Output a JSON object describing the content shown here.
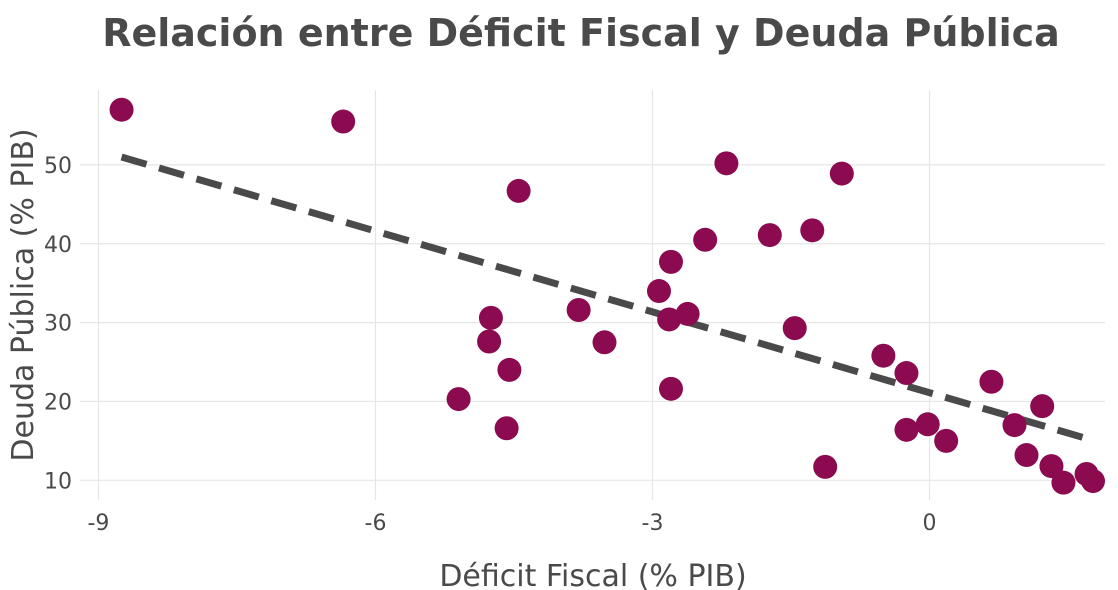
{
  "chart_data": {
    "type": "scatter",
    "title": "Relación entre Déficit Fiscal y Deuda Pública",
    "xlabel": "Déficit Fiscal (% PIB)",
    "ylabel": "Deuda Pública (% PIB)",
    "xlim": [
      -9.2,
      1.9
    ],
    "ylim": [
      7.5,
      59.5
    ],
    "x_ticks": [
      -9,
      -6,
      -3,
      0
    ],
    "y_ticks": [
      10,
      20,
      30,
      40,
      50
    ],
    "grid": true,
    "point_color": "#8b0a50",
    "trend_color": "#4a4a4a",
    "points": [
      {
        "x": -8.75,
        "y": 57.0
      },
      {
        "x": -6.35,
        "y": 55.5
      },
      {
        "x": -5.1,
        "y": 20.3
      },
      {
        "x": -4.75,
        "y": 30.6
      },
      {
        "x": -4.77,
        "y": 27.6
      },
      {
        "x": -4.55,
        "y": 24.0
      },
      {
        "x": -4.58,
        "y": 16.6
      },
      {
        "x": -4.45,
        "y": 46.7
      },
      {
        "x": -3.8,
        "y": 31.6
      },
      {
        "x": -3.52,
        "y": 27.5
      },
      {
        "x": -2.93,
        "y": 34.0
      },
      {
        "x": -2.8,
        "y": 37.7
      },
      {
        "x": -2.82,
        "y": 30.4
      },
      {
        "x": -2.62,
        "y": 31.1
      },
      {
        "x": -2.8,
        "y": 21.6
      },
      {
        "x": -2.43,
        "y": 40.5
      },
      {
        "x": -2.2,
        "y": 50.2
      },
      {
        "x": -1.73,
        "y": 41.1
      },
      {
        "x": -1.27,
        "y": 41.7
      },
      {
        "x": -1.46,
        "y": 29.3
      },
      {
        "x": -1.13,
        "y": 11.7
      },
      {
        "x": -0.95,
        "y": 48.9
      },
      {
        "x": -0.5,
        "y": 25.8
      },
      {
        "x": -0.25,
        "y": 23.6
      },
      {
        "x": -0.25,
        "y": 16.4
      },
      {
        "x": -0.02,
        "y": 17.1
      },
      {
        "x": 0.18,
        "y": 15.0
      },
      {
        "x": 0.67,
        "y": 22.5
      },
      {
        "x": 0.92,
        "y": 17.0
      },
      {
        "x": 1.05,
        "y": 13.2
      },
      {
        "x": 1.22,
        "y": 19.4
      },
      {
        "x": 1.32,
        "y": 11.8
      },
      {
        "x": 1.45,
        "y": 9.7
      },
      {
        "x": 1.7,
        "y": 10.8
      },
      {
        "x": 1.77,
        "y": 9.9
      }
    ],
    "trendline": {
      "x": [
        -8.75,
        1.7
      ],
      "y": [
        51.0,
        15.3
      ]
    }
  }
}
